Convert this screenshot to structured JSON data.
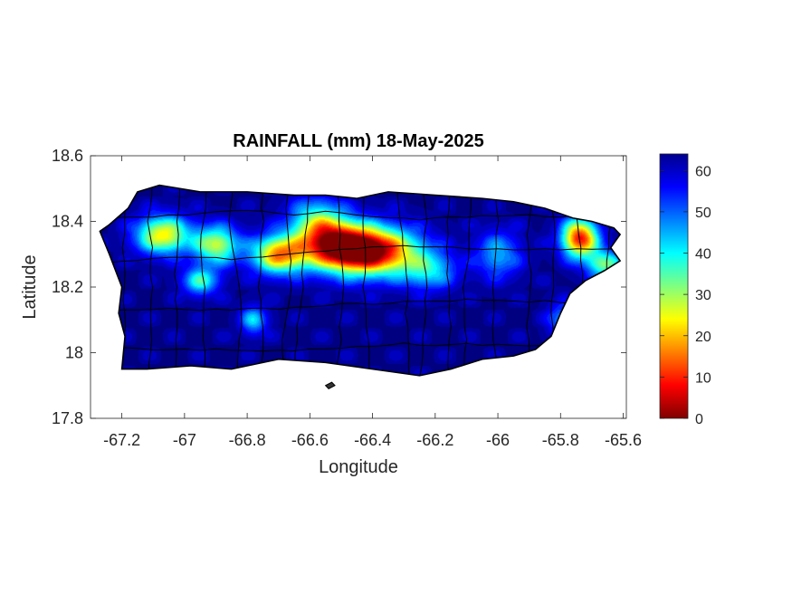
{
  "chart_data": {
    "type": "heatmap",
    "title": "RAINFALL (mm) 18-May-2025",
    "xlabel": "Longitude",
    "ylabel": "Latitude",
    "xlim": [
      -67.3,
      -65.59
    ],
    "ylim": [
      17.8,
      18.6
    ],
    "xticks": [
      -67.2,
      -67,
      -66.8,
      -66.6,
      -66.4,
      -66.2,
      -66,
      -65.8,
      -65.6
    ],
    "xtick_labels": [
      "-67.2",
      "-67",
      "-66.8",
      "-66.6",
      "-66.4",
      "-66.2",
      "-66",
      "-65.8",
      "-65.6"
    ],
    "yticks": [
      17.8,
      18,
      18.2,
      18.4,
      18.6
    ],
    "ytick_labels": [
      "17.8",
      "18",
      "18.2",
      "18.4",
      "18.6"
    ],
    "colorbar": {
      "colormap": "jet",
      "range": [
        0,
        64
      ],
      "ticks": [
        0,
        10,
        20,
        30,
        40,
        50,
        60
      ],
      "tick_labels": [
        "0",
        "10",
        "20",
        "30",
        "40",
        "50",
        "60"
      ]
    },
    "island_outline": [
      [
        -67.27,
        18.37
      ],
      [
        -67.24,
        18.39
      ],
      [
        -67.18,
        18.44
      ],
      [
        -67.15,
        18.49
      ],
      [
        -67.08,
        18.51
      ],
      [
        -66.95,
        18.49
      ],
      [
        -66.8,
        18.49
      ],
      [
        -66.65,
        18.48
      ],
      [
        -66.55,
        18.48
      ],
      [
        -66.45,
        18.47
      ],
      [
        -66.35,
        18.49
      ],
      [
        -66.2,
        18.48
      ],
      [
        -66.05,
        18.47
      ],
      [
        -65.95,
        18.46
      ],
      [
        -65.85,
        18.44
      ],
      [
        -65.76,
        18.41
      ],
      [
        -65.7,
        18.4
      ],
      [
        -65.63,
        18.38
      ],
      [
        -65.61,
        18.36
      ],
      [
        -65.64,
        18.32
      ],
      [
        -65.61,
        18.28
      ],
      [
        -65.66,
        18.25
      ],
      [
        -65.72,
        18.22
      ],
      [
        -65.77,
        18.18
      ],
      [
        -65.8,
        18.12
      ],
      [
        -65.83,
        18.05
      ],
      [
        -65.88,
        18.01
      ],
      [
        -65.95,
        17.99
      ],
      [
        -66.05,
        17.98
      ],
      [
        -66.15,
        17.95
      ],
      [
        -66.25,
        17.93
      ],
      [
        -66.4,
        17.95
      ],
      [
        -66.55,
        17.97
      ],
      [
        -66.7,
        17.98
      ],
      [
        -66.85,
        17.95
      ],
      [
        -66.98,
        17.96
      ],
      [
        -67.12,
        17.95
      ],
      [
        -67.2,
        17.95
      ],
      [
        -67.19,
        18.05
      ],
      [
        -67.21,
        18.12
      ],
      [
        -67.2,
        18.2
      ],
      [
        -67.24,
        18.3
      ]
    ],
    "small_islands": [
      {
        "name_shown": "",
        "points": [
          [
            -66.55,
            17.9
          ],
          [
            -66.53,
            17.91
          ],
          [
            -66.52,
            17.9
          ],
          [
            -66.54,
            17.89
          ]
        ]
      }
    ],
    "rainfall_features_mm": [
      {
        "lon": -66.4,
        "lat": 18.31,
        "sx": 0.1,
        "sy": 0.05,
        "value": 60
      },
      {
        "lon": -66.52,
        "lat": 18.33,
        "sx": 0.08,
        "sy": 0.05,
        "value": 45
      },
      {
        "lon": -66.7,
        "lat": 18.3,
        "sx": 0.06,
        "sy": 0.04,
        "value": 45
      },
      {
        "lon": -66.9,
        "lat": 18.33,
        "sx": 0.05,
        "sy": 0.04,
        "value": 35
      },
      {
        "lon": -67.07,
        "lat": 18.36,
        "sx": 0.06,
        "sy": 0.04,
        "value": 40
      },
      {
        "lon": -65.74,
        "lat": 18.35,
        "sx": 0.04,
        "sy": 0.04,
        "value": 55
      },
      {
        "lon": -65.66,
        "lat": 18.27,
        "sx": 0.04,
        "sy": 0.03,
        "value": 30
      },
      {
        "lon": -66.58,
        "lat": 18.4,
        "sx": 0.06,
        "sy": 0.05,
        "value": 25
      },
      {
        "lon": -66.22,
        "lat": 18.25,
        "sx": 0.06,
        "sy": 0.04,
        "value": 20
      },
      {
        "lon": -66.0,
        "lat": 18.3,
        "sx": 0.05,
        "sy": 0.05,
        "value": 18
      },
      {
        "lon": -66.95,
        "lat": 18.22,
        "sx": 0.04,
        "sy": 0.03,
        "value": 25
      },
      {
        "lon": -66.78,
        "lat": 18.1,
        "sx": 0.03,
        "sy": 0.03,
        "value": 20
      },
      {
        "lon": -65.8,
        "lat": 18.1,
        "sx": 0.03,
        "sy": 0.04,
        "value": 15
      }
    ]
  }
}
